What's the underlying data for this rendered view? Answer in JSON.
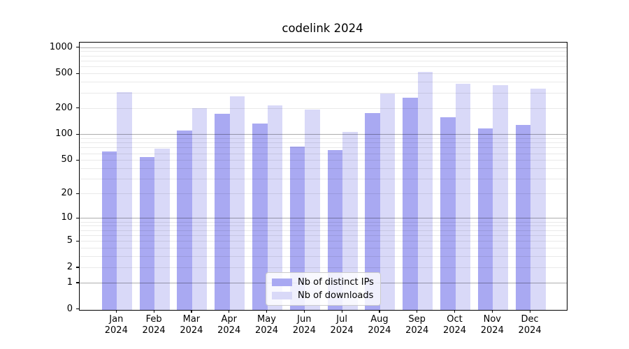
{
  "title": "codelink 2024",
  "legend": {
    "position": "lower center",
    "items": [
      {
        "label": "Nb of distinct IPs",
        "color": "#a9a9f2"
      },
      {
        "label": "Nb of downloads",
        "color": "#d9d9f8"
      }
    ]
  },
  "chart_data": {
    "type": "bar",
    "title": "codelink 2024",
    "categories": [
      "Jan",
      "Feb",
      "Mar",
      "Apr",
      "May",
      "Jun",
      "Jul",
      "Aug",
      "Sep",
      "Oct",
      "Nov",
      "Dec"
    ],
    "x_year": "2024",
    "series": [
      {
        "name": "Nb of distinct IPs",
        "color": "#a9a9f2",
        "values": [
          64,
          55,
          112,
          176,
          135,
          73,
          66,
          178,
          268,
          160,
          118,
          130
        ]
      },
      {
        "name": "Nb of downloads",
        "color": "#d9d9f8",
        "values": [
          312,
          69,
          202,
          277,
          218,
          194,
          108,
          298,
          534,
          385,
          371,
          340
        ]
      }
    ],
    "xlabel": "",
    "ylabel": "",
    "y_scale": "log1p",
    "ylim": [
      0,
      1000
    ],
    "y_ticks": [
      0,
      1,
      2,
      5,
      10,
      20,
      50,
      100,
      200,
      500,
      1000
    ],
    "y_major_gridlines": [
      1,
      10,
      100,
      1000
    ],
    "grid": "horizontal"
  }
}
